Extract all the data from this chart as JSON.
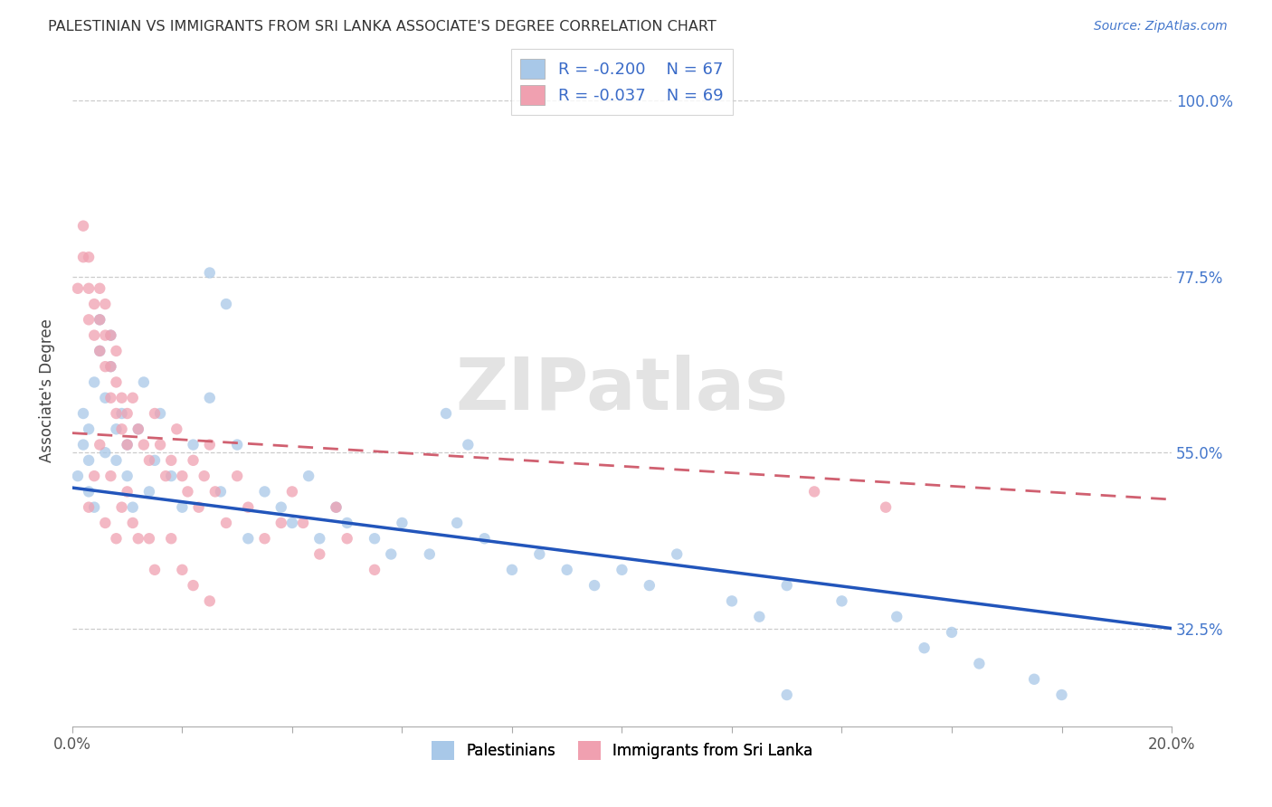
{
  "title": "PALESTINIAN VS IMMIGRANTS FROM SRI LANKA ASSOCIATE'S DEGREE CORRELATION CHART",
  "source": "Source: ZipAtlas.com",
  "ylabel": "Associate's Degree",
  "ytick_labels": [
    "100.0%",
    "77.5%",
    "55.0%",
    "32.5%"
  ],
  "ytick_values": [
    1.0,
    0.775,
    0.55,
    0.325
  ],
  "legend_blue_R": "R = -0.200",
  "legend_blue_N": "N = 67",
  "legend_pink_R": "R = -0.037",
  "legend_pink_N": "N = 69",
  "legend_label_blue": "Palestinians",
  "legend_label_pink": "Immigrants from Sri Lanka",
  "blue_color": "#A8C8E8",
  "pink_color": "#F0A0B0",
  "blue_line_color": "#2255BB",
  "pink_line_color": "#D06070",
  "watermark": "ZIPatlas",
  "xmin": 0.0,
  "xmax": 0.2,
  "ymin": 0.2,
  "ymax": 1.06,
  "blue_line_x0": 0.0,
  "blue_line_y0": 0.505,
  "blue_line_x1": 0.2,
  "blue_line_y1": 0.325,
  "pink_line_x0": 0.0,
  "pink_line_y0": 0.575,
  "pink_line_x1": 0.2,
  "pink_line_y1": 0.49,
  "blue_scatter_x": [
    0.001,
    0.002,
    0.002,
    0.003,
    0.003,
    0.003,
    0.004,
    0.004,
    0.005,
    0.005,
    0.006,
    0.006,
    0.007,
    0.007,
    0.008,
    0.008,
    0.009,
    0.01,
    0.01,
    0.011,
    0.012,
    0.013,
    0.014,
    0.015,
    0.016,
    0.018,
    0.02,
    0.022,
    0.025,
    0.027,
    0.03,
    0.032,
    0.035,
    0.038,
    0.04,
    0.043,
    0.045,
    0.048,
    0.05,
    0.055,
    0.058,
    0.06,
    0.065,
    0.07,
    0.075,
    0.08,
    0.085,
    0.09,
    0.095,
    0.1,
    0.105,
    0.11,
    0.12,
    0.125,
    0.13,
    0.14,
    0.15,
    0.155,
    0.16,
    0.165,
    0.175,
    0.18,
    0.068,
    0.072,
    0.025,
    0.028,
    0.13
  ],
  "blue_scatter_y": [
    0.52,
    0.56,
    0.6,
    0.5,
    0.54,
    0.58,
    0.48,
    0.64,
    0.68,
    0.72,
    0.55,
    0.62,
    0.66,
    0.7,
    0.58,
    0.54,
    0.6,
    0.52,
    0.56,
    0.48,
    0.58,
    0.64,
    0.5,
    0.54,
    0.6,
    0.52,
    0.48,
    0.56,
    0.62,
    0.5,
    0.56,
    0.44,
    0.5,
    0.48,
    0.46,
    0.52,
    0.44,
    0.48,
    0.46,
    0.44,
    0.42,
    0.46,
    0.42,
    0.46,
    0.44,
    0.4,
    0.42,
    0.4,
    0.38,
    0.4,
    0.38,
    0.42,
    0.36,
    0.34,
    0.38,
    0.36,
    0.34,
    0.3,
    0.32,
    0.28,
    0.26,
    0.24,
    0.6,
    0.56,
    0.78,
    0.74,
    0.24
  ],
  "pink_scatter_x": [
    0.001,
    0.002,
    0.002,
    0.003,
    0.003,
    0.003,
    0.004,
    0.004,
    0.005,
    0.005,
    0.005,
    0.006,
    0.006,
    0.006,
    0.007,
    0.007,
    0.007,
    0.008,
    0.008,
    0.008,
    0.009,
    0.009,
    0.01,
    0.01,
    0.011,
    0.012,
    0.013,
    0.014,
    0.015,
    0.016,
    0.017,
    0.018,
    0.019,
    0.02,
    0.021,
    0.022,
    0.023,
    0.024,
    0.025,
    0.026,
    0.028,
    0.03,
    0.032,
    0.035,
    0.038,
    0.04,
    0.042,
    0.045,
    0.048,
    0.05,
    0.055,
    0.003,
    0.004,
    0.006,
    0.008,
    0.01,
    0.012,
    0.015,
    0.018,
    0.022,
    0.025,
    0.135,
    0.148,
    0.005,
    0.007,
    0.009,
    0.011,
    0.014,
    0.02
  ],
  "pink_scatter_y": [
    0.76,
    0.8,
    0.84,
    0.72,
    0.76,
    0.8,
    0.7,
    0.74,
    0.68,
    0.72,
    0.76,
    0.66,
    0.7,
    0.74,
    0.62,
    0.66,
    0.7,
    0.6,
    0.64,
    0.68,
    0.58,
    0.62,
    0.56,
    0.6,
    0.62,
    0.58,
    0.56,
    0.54,
    0.6,
    0.56,
    0.52,
    0.54,
    0.58,
    0.52,
    0.5,
    0.54,
    0.48,
    0.52,
    0.56,
    0.5,
    0.46,
    0.52,
    0.48,
    0.44,
    0.46,
    0.5,
    0.46,
    0.42,
    0.48,
    0.44,
    0.4,
    0.48,
    0.52,
    0.46,
    0.44,
    0.5,
    0.44,
    0.4,
    0.44,
    0.38,
    0.36,
    0.5,
    0.48,
    0.56,
    0.52,
    0.48,
    0.46,
    0.44,
    0.4
  ]
}
